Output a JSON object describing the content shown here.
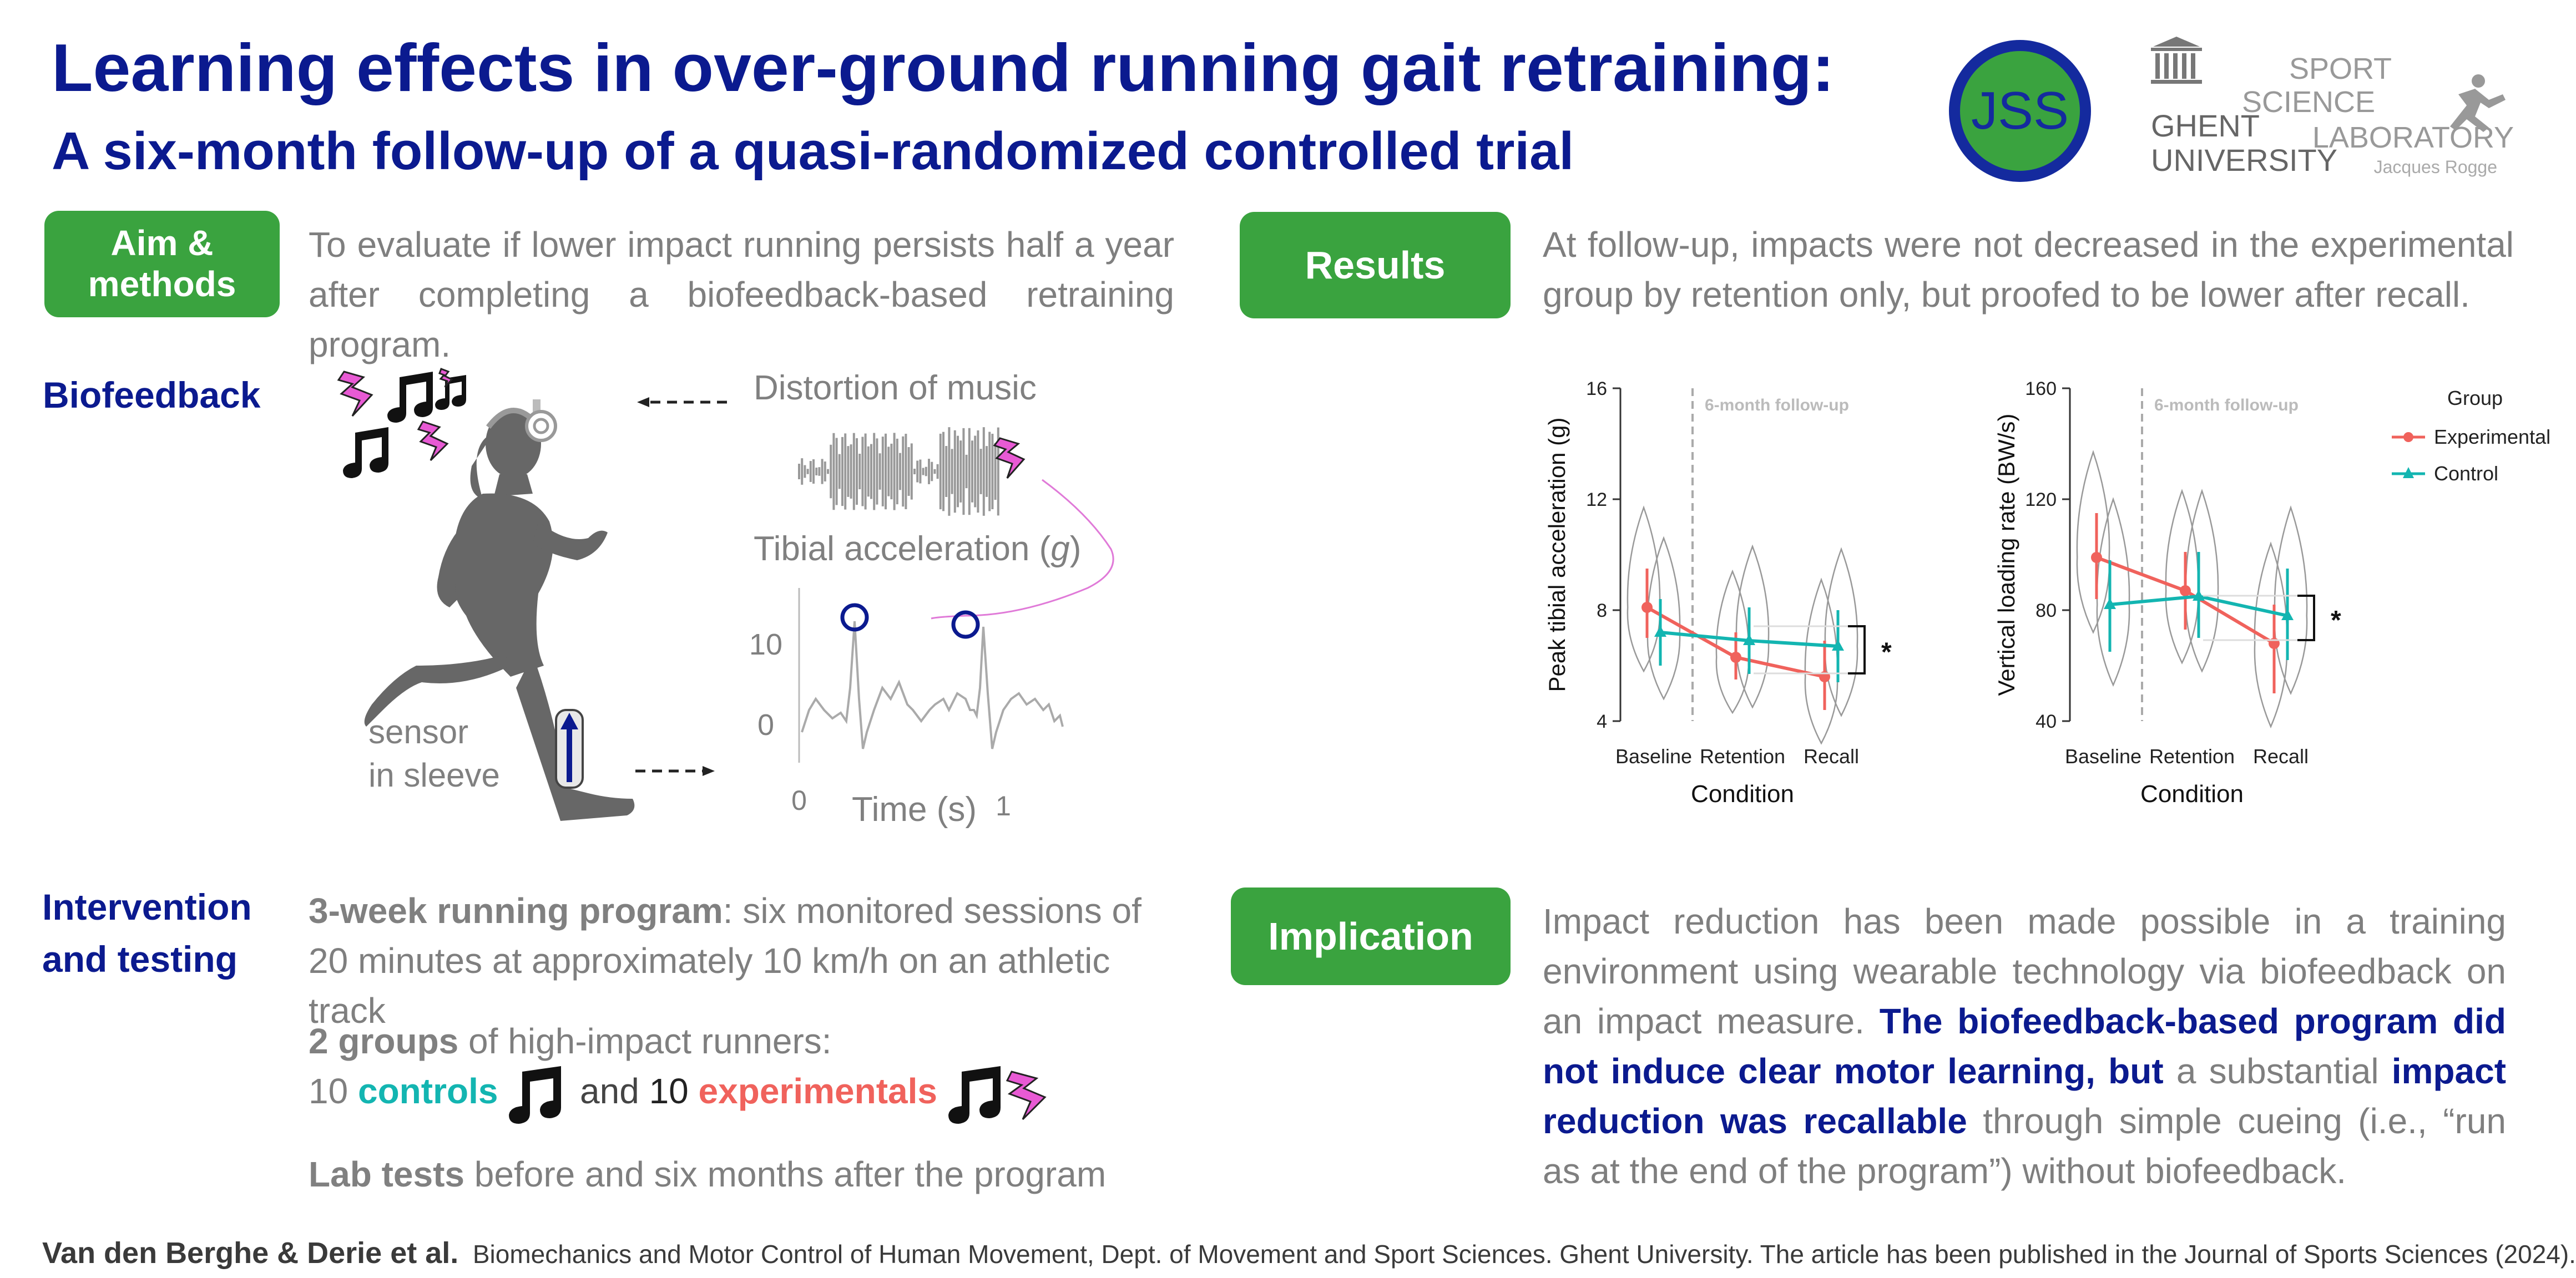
{
  "header": {
    "title": "Learning effects in over-ground running gait retraining:",
    "subtitle": "A six-month follow-up of a quasi-randomized controlled trial",
    "logo_jss": "JSS",
    "logo_ghent_line1": "GHENT",
    "logo_ghent_line2": "UNIVERSITY",
    "logo_lab_line1": "SPORT",
    "logo_lab_line2": "SCIENCE",
    "logo_lab_line3": "LABORATORY",
    "logo_lab_line4": "Jacques Rogge"
  },
  "aim": {
    "label_line1": "Aim &",
    "label_line2": "methods",
    "text": "To evaluate if lower impact running persists half a year after completing a biofeedback-based retraining program."
  },
  "biofeedback": {
    "heading": "Biofeedback",
    "distortion_label": "Distortion of music",
    "tibial_label": "Tibial acceleration (",
    "tibial_unit": "g",
    "tibial_close": ")",
    "y_tick_10": "10",
    "y_tick_0": "0",
    "x_tick_0": "0",
    "x_tick_1": "1",
    "x_label": "Time (s)",
    "sensor_line1": "sensor",
    "sensor_line2": "in sleeve"
  },
  "intervention": {
    "heading_line1": "Intervention",
    "heading_line2": "and testing",
    "program_bold": "3-week running program",
    "program_text": ": six monitored sessions of 20 minutes at approximately 10 km/h on an athletic track",
    "groups_bold": "2 groups",
    "groups_text": " of high-impact runners:",
    "n_controls": "10 ",
    "controls": "controls",
    "and_text": "and",
    "n_exp": "10",
    "experimentals": "experimentals",
    "lab_bold": "Lab tests",
    "lab_text": " before and six months after the program"
  },
  "results": {
    "label": "Results",
    "text": "At follow-up, impacts were not decreased in the experimental group by retention only, but proofed to be lower after recall."
  },
  "implication": {
    "label": "Implication",
    "t1": "Impact reduction has been made possible in a training environment using wearable technology via biofeedback on an impact measure. ",
    "b1": "The biofeedback-based program did not induce clear motor learning, but",
    "t2": " a substantial ",
    "b2": "impact reduction was recallable",
    "t3": " through simple cueing (i.e., “run as at the end of the program”) without biofeedback."
  },
  "footer": {
    "authors": "Van den Berghe & Derie et al.",
    "text": "Biomechanics and Motor Control of Human Movement,  Dept. of Movement and Sport Sciences. Ghent University. The article has been published in the Journal of Sports Sciences (2024)."
  },
  "colors": {
    "title_blue": "#0b1a8f",
    "pill_green": "#3aa33f",
    "experimental": "#f0625c",
    "control": "#13b5b1"
  },
  "chart_data": [
    {
      "type": "line",
      "ylabel": "Peak tibial acceleration (g)",
      "xlabel": "Condition",
      "categories": [
        "Baseline",
        "Retention",
        "Recall"
      ],
      "yticks": [
        "4",
        "8",
        "12",
        "16"
      ],
      "ylim": [
        4,
        16
      ],
      "annotation": "6-month follow-up",
      "significance": "*",
      "series": [
        {
          "name": "Experimental",
          "values": [
            8.1,
            6.3,
            5.6
          ],
          "err_low": [
            7.0,
            5.5,
            4.4
          ],
          "err_high": [
            9.5,
            7.2,
            6.9
          ]
        },
        {
          "name": "Control",
          "values": [
            7.2,
            6.9,
            6.7
          ],
          "err_low": [
            6.0,
            5.7,
            5.4
          ],
          "err_high": [
            8.4,
            8.1,
            8.0
          ]
        }
      ]
    },
    {
      "type": "line",
      "ylabel": "Vertical loading rate (BW/s)",
      "xlabel": "Condition",
      "categories": [
        "Baseline",
        "Retention",
        "Recall"
      ],
      "yticks": [
        "40",
        "80",
        "120",
        "160"
      ],
      "ylim": [
        40,
        160
      ],
      "annotation": "6-month follow-up",
      "significance": "*",
      "legend_title": "Group",
      "series": [
        {
          "name": "Experimental",
          "values": [
            99,
            87,
            68
          ],
          "err_low": [
            84,
            73,
            50
          ],
          "err_high": [
            115,
            101,
            82
          ]
        },
        {
          "name": "Control",
          "values": [
            82,
            85,
            78
          ],
          "err_low": [
            65,
            70,
            62
          ],
          "err_high": [
            98,
            101,
            95
          ]
        }
      ]
    }
  ]
}
